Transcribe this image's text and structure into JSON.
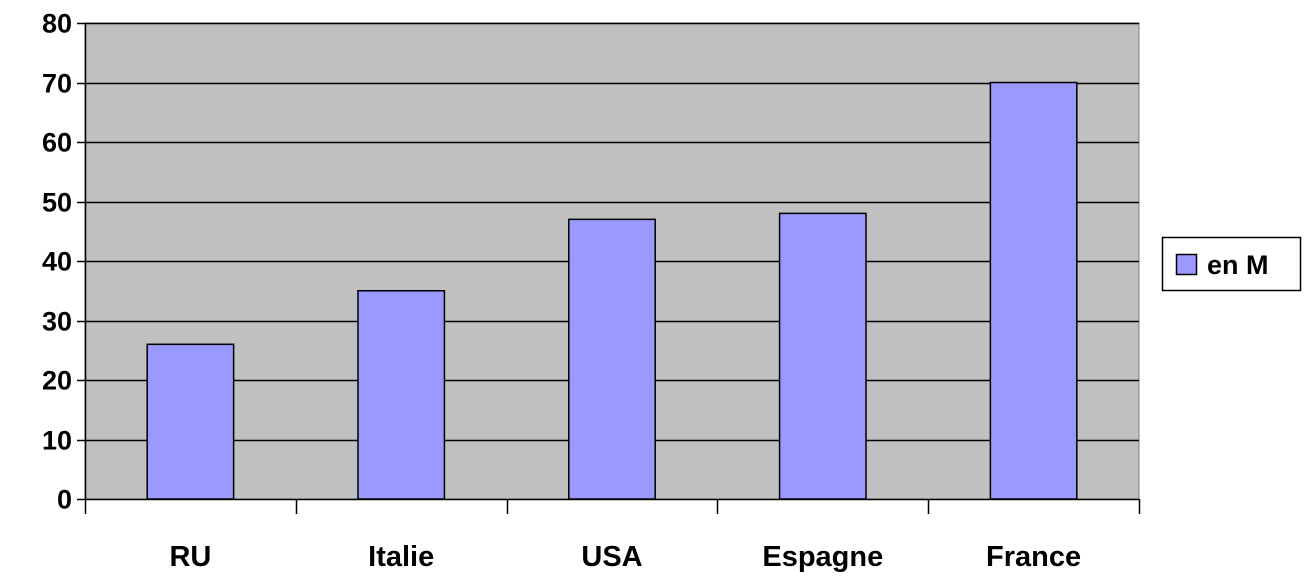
{
  "chart_data": {
    "type": "bar",
    "title": "",
    "xlabel": "",
    "ylabel": "",
    "categories": [
      "RU",
      "Italie",
      "USA",
      "Espagne",
      "France"
    ],
    "series": [
      {
        "name": "en M",
        "values": [
          26,
          35,
          47,
          48,
          70
        ]
      }
    ],
    "ylim": [
      0,
      80
    ],
    "yticks": [
      0,
      10,
      20,
      30,
      40,
      50,
      60,
      70,
      80
    ],
    "grid": true,
    "legend_position": "right",
    "colors": {
      "plot_background": "#c0c0c0",
      "bar_fill": "#9999ff",
      "bar_stroke": "#000000",
      "gridline": "#000000"
    }
  }
}
